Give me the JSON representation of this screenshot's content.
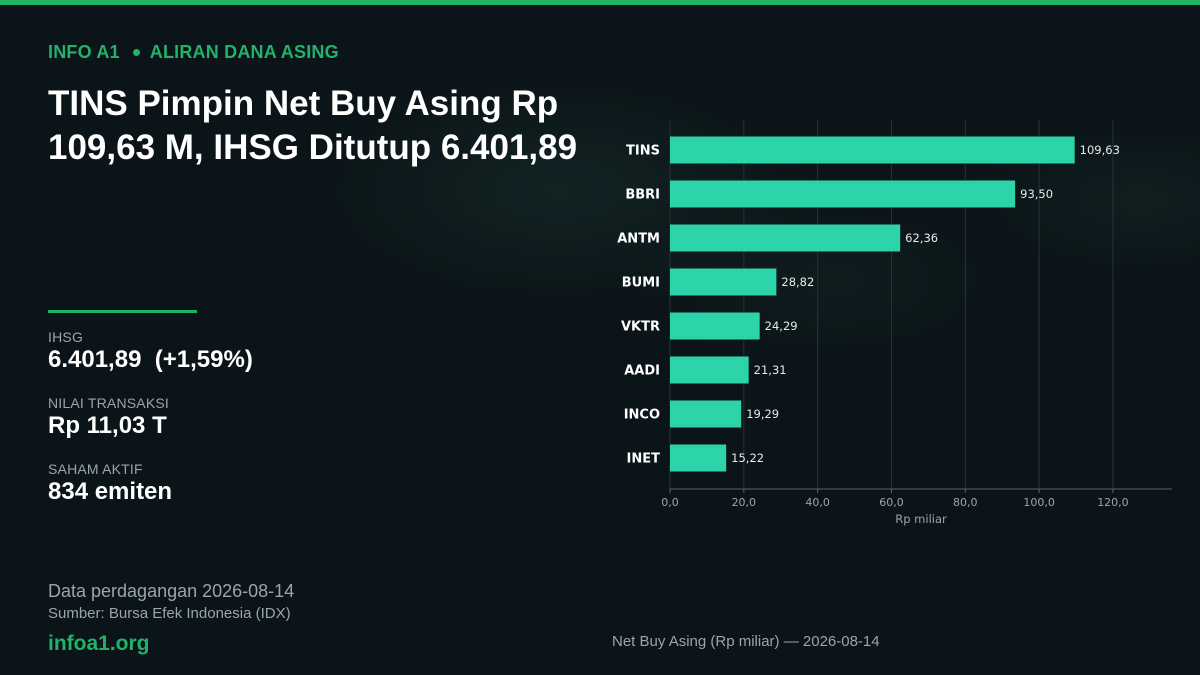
{
  "header": {
    "brand": "INFO A1",
    "section": "ALIRAN DANA ASING",
    "headline": "TINS Pimpin Net Buy Asing Rp 109,63 M, IHSG Ditutup 6.401,89"
  },
  "stats": [
    {
      "label": "IHSG",
      "value": "6.401,89  (+1,59%)"
    },
    {
      "label": "NILAI TRANSAKSI",
      "value": "Rp 11,03 T"
    },
    {
      "label": "SAHAM AKTIF",
      "value": "834 emiten"
    }
  ],
  "footer": {
    "date_line": "Data perdagangan 2026-08-14",
    "source": "Sumber: Bursa Efek Indonesia (IDX)",
    "site": "infoa1.org",
    "caption": "Net Buy Asing (Rp miliar) — 2026-08-14"
  },
  "colors": {
    "accent": "#22b26a",
    "bar": "#2dd4aa",
    "background": "#0b1418"
  },
  "chart_data": {
    "type": "bar",
    "orientation": "horizontal",
    "categories": [
      "TINS",
      "BBRI",
      "ANTM",
      "BUMI",
      "VKTR",
      "AADI",
      "INCO",
      "INET"
    ],
    "values": [
      109.63,
      93.5,
      62.36,
      28.82,
      24.29,
      21.31,
      19.29,
      15.22
    ],
    "value_labels": [
      "109,63",
      "93,50",
      "62,36",
      "28,82",
      "24,29",
      "21,31",
      "19,29",
      "15,22"
    ],
    "xlabel": "Rp miliar",
    "xlim": [
      0,
      136
    ],
    "xticks": [
      0,
      20,
      40,
      60,
      80,
      100,
      120
    ],
    "xtick_labels": [
      "0,0",
      "20,0",
      "40,0",
      "60,0",
      "80,0",
      "100,0",
      "120,0"
    ],
    "grid": "vertical",
    "legend": "none"
  }
}
